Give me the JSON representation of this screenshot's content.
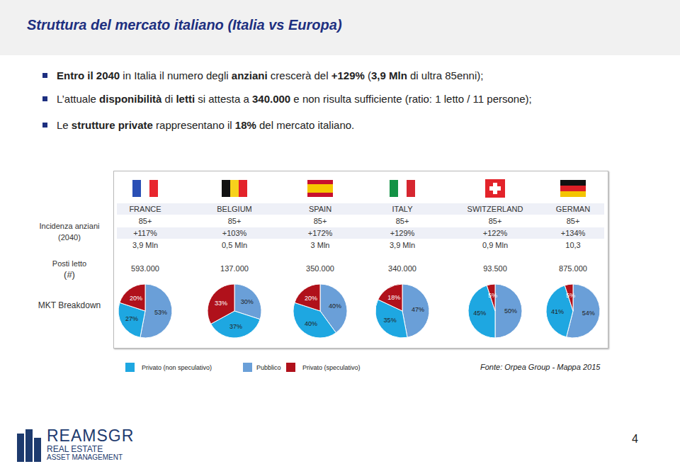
{
  "header": {
    "title": "Struttura del mercato italiano (Italia vs Europa)"
  },
  "bullets": [
    [
      {
        "text": "Entro il 2040",
        "bold": true
      },
      {
        "text": " in Italia il numero degli ",
        "bold": false
      },
      {
        "text": "anziani",
        "bold": true
      },
      {
        "text": " crescerà del ",
        "bold": false
      },
      {
        "text": "+129%",
        "bold": true
      },
      {
        "text": " (",
        "bold": false
      },
      {
        "text": "3,9 Mln",
        "bold": true
      },
      {
        "text": " di ultra 85enni);",
        "bold": false
      }
    ],
    [
      {
        "text": "L’attuale ",
        "bold": false
      },
      {
        "text": "disponibilità",
        "bold": true
      },
      {
        "text": " di ",
        "bold": false
      },
      {
        "text": "letti",
        "bold": true
      },
      {
        "text": " si attesta a ",
        "bold": false
      },
      {
        "text": "340.000",
        "bold": true
      },
      {
        "text": " e non risulta sufficiente (ratio: 1 letto / 11 persone);",
        "bold": false
      }
    ],
    [
      {
        "text": "Le ",
        "bold": false
      },
      {
        "text": "strutture private",
        "bold": true
      },
      {
        "text": " rappresentano il ",
        "bold": false
      },
      {
        "text": "18%",
        "bold": true
      },
      {
        "text": " del mercato italiano.",
        "bold": false
      }
    ]
  ],
  "row_labels": [
    [
      "Incidenza anziani",
      "(2040)"
    ],
    [
      "Posti letto",
      "(#)"
    ],
    [
      "MKT Breakdown"
    ]
  ],
  "table": {
    "columns": [
      {
        "country": "FRANCE",
        "age": "85+",
        "growth": "+117%",
        "elderly": "3,9 Mln",
        "beds": "593.000"
      },
      {
        "country": "BELGIUM",
        "age": "85+",
        "growth": "+103%",
        "elderly": "0,5 Mln",
        "beds": "137.000"
      },
      {
        "country": "SPAIN",
        "age": "85+",
        "growth": "+172%",
        "elderly": "3 Mln",
        "beds": "350.000"
      },
      {
        "country": "ITALY",
        "age": "85+",
        "growth": "+129%",
        "elderly": "3,9 Mln",
        "beds": "340.000"
      },
      {
        "country": "SWITZERLAND",
        "age": "85+",
        "growth": "+122%",
        "elderly": "0,9 Mln",
        "beds": "93.500"
      },
      {
        "country": "GERMAN",
        "age": "85+",
        "growth": "+134%",
        "elderly": "10,3",
        "beds": "875.000"
      }
    ]
  },
  "legend_items": [
    {
      "name": "Privato (non speculativo)",
      "color": "#1ea7e1"
    },
    {
      "name": "Pubblico",
      "color": "#6a9fd8"
    },
    {
      "name": "Privato (speculativo)",
      "color": "#b0111b"
    }
  ],
  "chart_data": [
    {
      "type": "pie",
      "categories": [
        "Pubblico",
        "Privato (non speculativo)",
        "Privato (speculativo)"
      ],
      "values": [
        53,
        27,
        20
      ],
      "value_labels": [
        "53%",
        "27%",
        "20%"
      ],
      "data_labels": true
    },
    {
      "type": "pie",
      "categories": [
        "Pubblico",
        "Privato (non speculativo)",
        "Privato (speculativo)"
      ],
      "values": [
        30,
        37,
        33
      ],
      "value_labels": [
        "30%",
        "37%",
        "33%"
      ],
      "data_labels": true
    },
    {
      "type": "pie",
      "categories": [
        "Pubblico",
        "Privato (non speculativo)",
        "Privato (speculativo)"
      ],
      "values": [
        40,
        40,
        20
      ],
      "value_labels": [
        "40%",
        "40%",
        "20%"
      ],
      "data_labels": true
    },
    {
      "type": "pie",
      "categories": [
        "Pubblico",
        "Privato (non speculativo)",
        "Privato (speculativo)"
      ],
      "values": [
        47,
        35,
        18
      ],
      "value_labels": [
        "47%",
        "35%",
        "18%"
      ],
      "data_labels": true
    },
    {
      "type": "pie",
      "categories": [
        "Pubblico",
        "Privato (non speculativo)",
        "Privato (speculativo)"
      ],
      "values": [
        50,
        45,
        5
      ],
      "value_labels": [
        "50%",
        "45%",
        "5%"
      ],
      "data_labels": true
    },
    {
      "type": "pie",
      "categories": [
        "Pubblico",
        "Privato (non speculativo)",
        "Privato (speculativo)"
      ],
      "values": [
        54,
        41,
        5
      ],
      "value_labels": [
        "54%",
        "41%",
        "5%"
      ],
      "data_labels": true
    }
  ],
  "source": "Fonte: Orpea Group - Mappa 2015",
  "logo": {
    "name": "REAMSGR",
    "line1": "REAL ESTATE",
    "line2": "ASSET MANAGEMENT"
  },
  "page_number": "4"
}
